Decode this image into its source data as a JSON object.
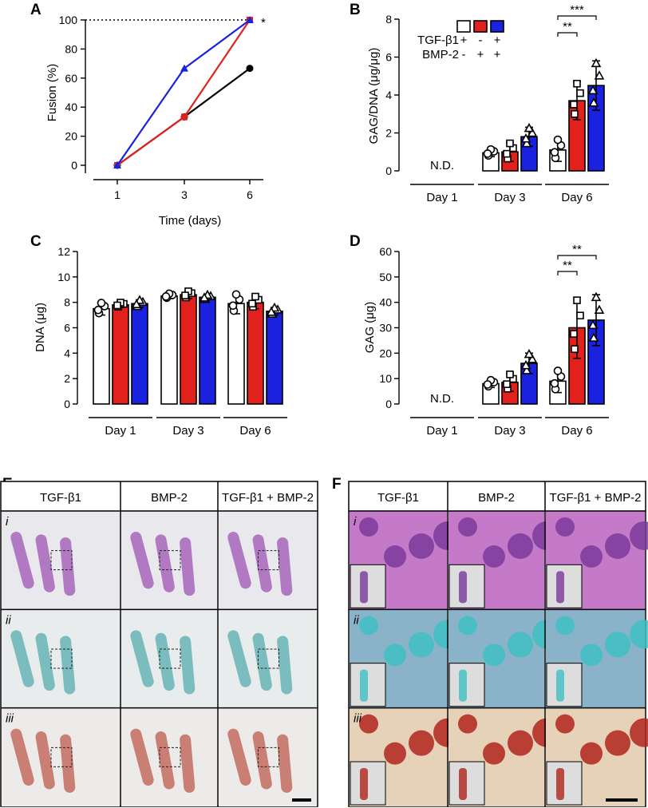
{
  "panels": {
    "A": "A",
    "B": "B",
    "C": "C",
    "D": "D",
    "E": "E",
    "F": "F"
  },
  "colors": {
    "tgf": "#ffffff",
    "bmp": "#e3211c",
    "both": "#1a22e0",
    "black": "#000000",
    "red": "#e3211c",
    "blue": "#1a22e0"
  },
  "legend": {
    "tgf_label": "TGF-β1",
    "bmp_label": "BMP-2",
    "tgf_signs": [
      "+",
      "-",
      "+"
    ],
    "bmp_signs": [
      "-",
      "+",
      "+"
    ]
  },
  "chart_data": [
    {
      "id": "A",
      "type": "line",
      "xlabel": "Time (days)",
      "ylabel": "Fusion (%)",
      "x": [
        1,
        3,
        6
      ],
      "ylim": [
        0,
        100
      ],
      "yticks": [
        0,
        20,
        40,
        60,
        80,
        100
      ],
      "series": [
        {
          "name": "TGF-β1",
          "color": "#000000",
          "values": [
            0,
            33.3,
            66.7
          ],
          "marker": "circle"
        },
        {
          "name": "BMP-2",
          "color": "#e3211c",
          "values": [
            0,
            33.3,
            100
          ],
          "marker": "square"
        },
        {
          "name": "TGF-β1 + BMP-2",
          "color": "#1a22e0",
          "values": [
            0,
            66.7,
            100
          ],
          "marker": "triangle"
        }
      ],
      "reference_line": 100,
      "annotation": "*"
    },
    {
      "id": "B",
      "type": "bar",
      "ylabel": "GAG/DNA (μg/μg)",
      "ylim": [
        0,
        8
      ],
      "yticks": [
        0,
        2,
        4,
        6,
        8
      ],
      "groups": [
        "Day 1",
        "Day 3",
        "Day 6"
      ],
      "nd_label": "N.D.",
      "nd_group": 0,
      "series": [
        {
          "name": "TGF-β1",
          "means": [
            null,
            0.95,
            1.1
          ],
          "sd": [
            null,
            0.2,
            0.6
          ]
        },
        {
          "name": "BMP-2",
          "means": [
            null,
            1.0,
            3.7
          ],
          "sd": [
            null,
            0.5,
            1.0
          ]
        },
        {
          "name": "TGF-β1 + BMP-2",
          "means": [
            null,
            1.8,
            4.5
          ],
          "sd": [
            null,
            0.5,
            1.3
          ]
        }
      ],
      "significance": [
        {
          "label": "**",
          "from": 0,
          "to": 1
        },
        {
          "label": "***",
          "from": 0,
          "to": 2
        }
      ]
    },
    {
      "id": "C",
      "type": "bar",
      "ylabel": "DNA (μg)",
      "ylim": [
        0,
        12
      ],
      "yticks": [
        0,
        2,
        4,
        6,
        8,
        10,
        12
      ],
      "groups": [
        "Day 1",
        "Day 3",
        "Day 6"
      ],
      "series": [
        {
          "name": "TGF-β1",
          "means": [
            7.5,
            8.5,
            7.9
          ],
          "sd": [
            0.5,
            0.2,
            0.8
          ]
        },
        {
          "name": "BMP-2",
          "means": [
            7.8,
            8.6,
            8.0
          ],
          "sd": [
            0.2,
            0.3,
            0.5
          ]
        },
        {
          "name": "TGF-β1 + BMP-2",
          "means": [
            7.9,
            8.4,
            7.3
          ],
          "sd": [
            0.3,
            0.2,
            0.3
          ]
        }
      ]
    },
    {
      "id": "D",
      "type": "bar",
      "ylabel": "GAG (μg)",
      "ylim": [
        0,
        60
      ],
      "yticks": [
        0,
        10,
        20,
        30,
        40,
        50,
        60
      ],
      "groups": [
        "Day 1",
        "Day 3",
        "Day 6"
      ],
      "nd_label": "N.D.",
      "nd_group": 0,
      "series": [
        {
          "name": "TGF-β1",
          "means": [
            null,
            8,
            9
          ],
          "sd": [
            null,
            1.5,
            4.5
          ]
        },
        {
          "name": "BMP-2",
          "means": [
            null,
            8.5,
            30
          ],
          "sd": [
            null,
            3.5,
            12
          ]
        },
        {
          "name": "TGF-β1 + BMP-2",
          "means": [
            null,
            16,
            33
          ],
          "sd": [
            null,
            4,
            10
          ]
        }
      ],
      "significance": [
        {
          "label": "**",
          "from": 0,
          "to": 1
        },
        {
          "label": "**",
          "from": 0,
          "to": 2
        }
      ]
    }
  ],
  "histology": {
    "E": {
      "columns": [
        "TGF-β1",
        "BMP-2",
        "TGF-β1 + BMP-2"
      ],
      "rows": [
        "i",
        "ii",
        "iii"
      ]
    },
    "F": {
      "columns": [
        "TGF-β1",
        "BMP-2",
        "TGF-β1 + BMP-2"
      ],
      "rows": [
        "i",
        "ii",
        "iii"
      ]
    }
  }
}
